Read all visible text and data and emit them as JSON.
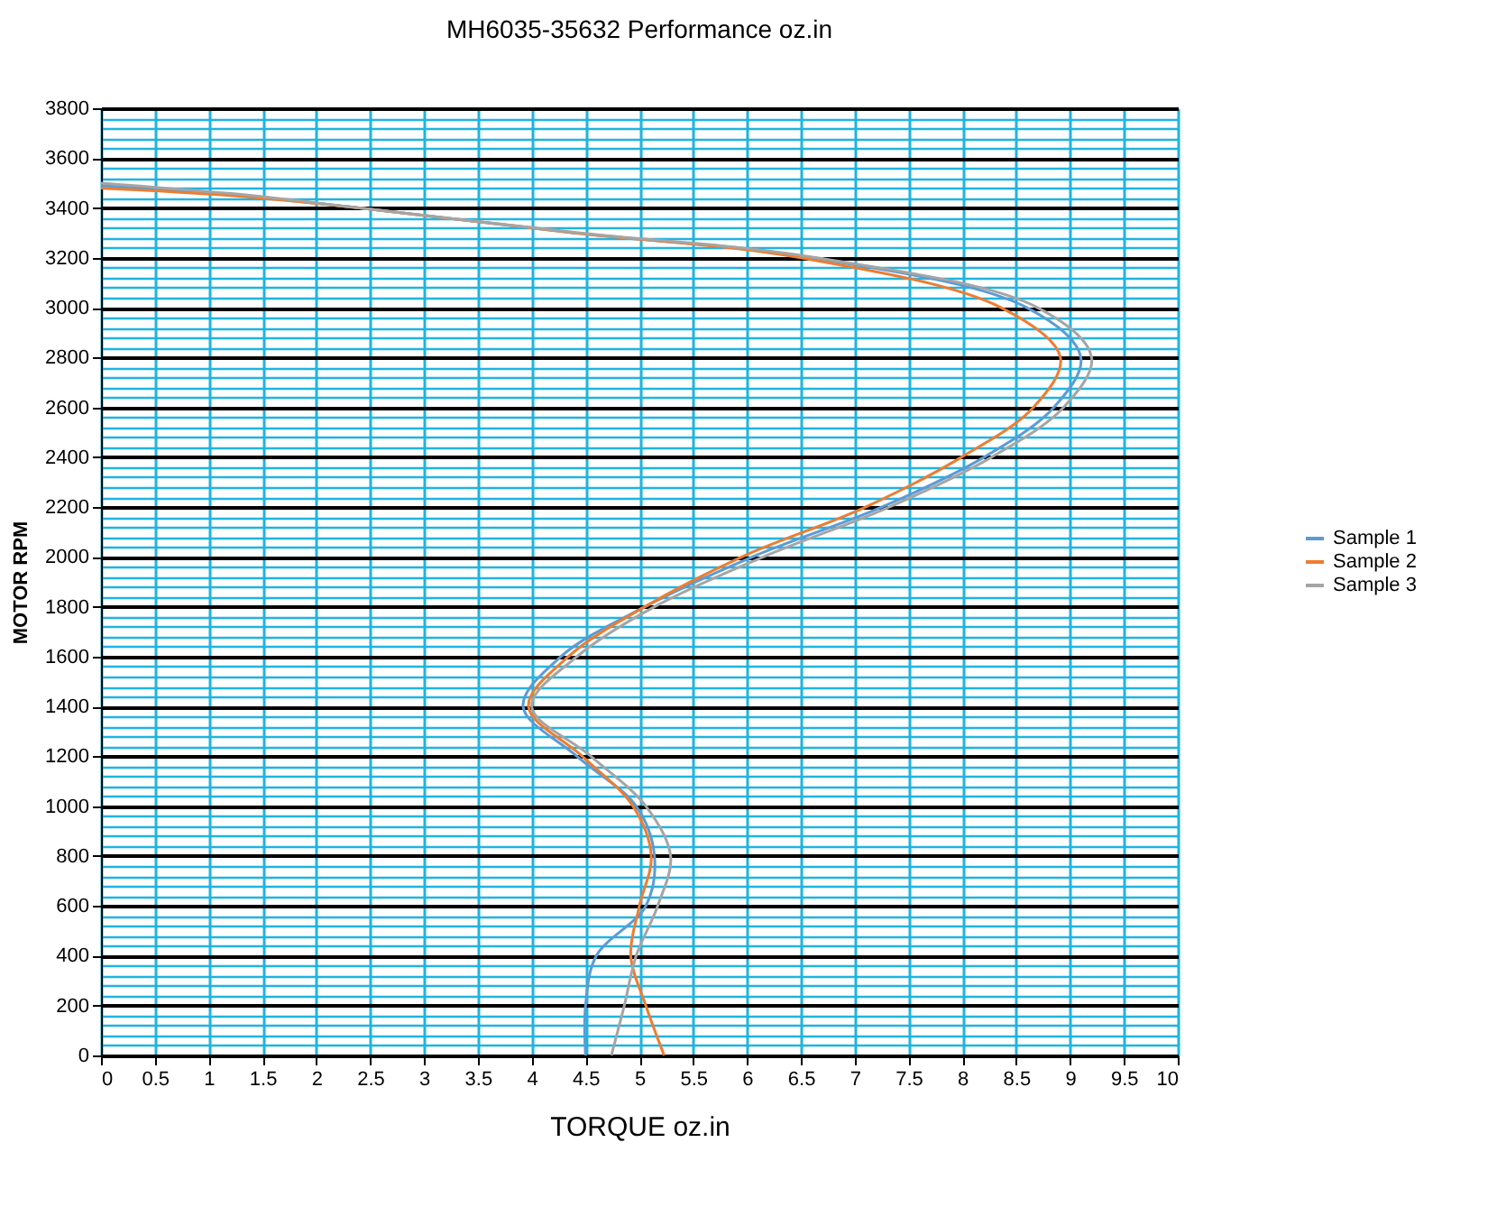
{
  "chart_data": {
    "type": "line",
    "title": "MH6035-35632  Performance oz.in",
    "xlabel": "TORQUE  oz.in",
    "ylabel": "MOTOR RPM",
    "xlim": [
      0,
      10
    ],
    "xticks": [
      0,
      0.5,
      1,
      1.5,
      2,
      2.5,
      3,
      3.5,
      4,
      4.5,
      5,
      5.5,
      6,
      6.5,
      7,
      7.5,
      8,
      8.5,
      9,
      9.5,
      10
    ],
    "ylim": [
      0,
      3800
    ],
    "yticks": [
      0,
      {
        "value": 40,
        "label": null
      },
      {
        "value": 80,
        "label": null
      },
      {
        "value": 120,
        "label": null
      },
      {
        "value": 160,
        "label": null
      },
      200,
      {
        "value": 240,
        "label": null
      },
      {
        "value": 280,
        "label": null
      },
      {
        "value": 320,
        "label": null
      },
      {
        "value": 360,
        "label": null
      },
      400,
      {
        "value": 440,
        "label": null
      },
      {
        "value": 480,
        "label": null
      },
      {
        "value": 520,
        "label": null
      },
      {
        "value": 560,
        "label": null
      },
      600,
      {
        "value": 640,
        "label": null
      },
      {
        "value": 680,
        "label": null
      },
      {
        "value": 720,
        "label": null
      },
      {
        "value": 760,
        "label": null
      },
      800,
      {
        "value": 840,
        "label": null
      },
      {
        "value": 880,
        "label": null
      },
      {
        "value": 920,
        "label": null
      },
      {
        "value": 960,
        "label": null
      },
      1000,
      {
        "value": 1040,
        "label": null
      },
      {
        "value": 1080,
        "label": null
      },
      {
        "value": 1120,
        "label": null
      },
      {
        "value": 1160,
        "label": null
      },
      1200,
      {
        "value": 1240,
        "label": null
      },
      {
        "value": 1280,
        "label": null
      },
      {
        "value": 1320,
        "label": null
      },
      {
        "value": 1360,
        "label": null
      },
      1400,
      {
        "value": 1440,
        "label": null
      },
      {
        "value": 1480,
        "label": null
      },
      {
        "value": 1520,
        "label": null
      },
      {
        "value": 1560,
        "label": null
      },
      1600,
      {
        "value": 1640,
        "label": null
      },
      {
        "value": 1680,
        "label": null
      },
      {
        "value": 1720,
        "label": null
      },
      {
        "value": 1760,
        "label": null
      },
      1800,
      {
        "value": 1840,
        "label": null
      },
      {
        "value": 1880,
        "label": null
      },
      {
        "value": 1920,
        "label": null
      },
      {
        "value": 1960,
        "label": null
      },
      2000,
      {
        "value": 2040,
        "label": null
      },
      {
        "value": 2080,
        "label": null
      },
      {
        "value": 2120,
        "label": null
      },
      {
        "value": 2160,
        "label": null
      },
      2200,
      {
        "value": 2240,
        "label": null
      },
      {
        "value": 2280,
        "label": null
      },
      {
        "value": 2320,
        "label": null
      },
      {
        "value": 2360,
        "label": null
      },
      2400,
      {
        "value": 2440,
        "label": null
      },
      {
        "value": 2480,
        "label": null
      },
      {
        "value": 2520,
        "label": null
      },
      {
        "value": 2560,
        "label": null
      },
      2600,
      {
        "value": 2640,
        "label": null
      },
      {
        "value": 2680,
        "label": null
      },
      {
        "value": 2720,
        "label": null
      },
      {
        "value": 2760,
        "label": null
      },
      2800,
      {
        "value": 2840,
        "label": null
      },
      {
        "value": 2880,
        "label": null
      },
      {
        "value": 2920,
        "label": null
      },
      {
        "value": 2960,
        "label": null
      },
      3000,
      {
        "value": 3040,
        "label": null
      },
      {
        "value": 3080,
        "label": null
      },
      {
        "value": 3120,
        "label": null
      },
      {
        "value": 3160,
        "label": null
      },
      3200,
      {
        "value": 3240,
        "label": null
      },
      {
        "value": 3280,
        "label": null
      },
      {
        "value": 3320,
        "label": null
      },
      {
        "value": 3360,
        "label": null
      },
      3400,
      {
        "value": 3440,
        "label": null
      },
      {
        "value": 3480,
        "label": null
      },
      {
        "value": 3520,
        "label": null
      },
      {
        "value": 3560,
        "label": null
      },
      3600,
      {
        "value": 3640,
        "label": null
      },
      {
        "value": 3680,
        "label": null
      },
      {
        "value": 3720,
        "label": null
      },
      {
        "value": 3760,
        "label": null
      },
      3800
    ],
    "grid": true,
    "legend": "right",
    "marker": "none",
    "line_style": "solid",
    "series": [
      {
        "name": "Sample 1",
        "color": "#5b9bd5",
        "x": [
          4.5,
          4.5,
          4.6,
          5.06,
          5.14,
          4.97,
          4.42,
          3.92,
          4.27,
          5.05,
          6.05,
          7.25,
          8.2,
          8.85,
          9.1,
          8.6,
          6.6,
          4.4,
          2.4,
          1.3,
          0
        ],
        "values": [
          0,
          200,
          400,
          600,
          800,
          1000,
          1200,
          1400,
          1600,
          1800,
          2000,
          2200,
          2400,
          2600,
          2800,
          3000,
          3200,
          3300,
          3400,
          3450,
          3490
        ]
      },
      {
        "name": "Sample 2",
        "color": "#ed7d31",
        "x": [
          5.23,
          5.06,
          4.92,
          5.0,
          5.11,
          4.94,
          4.47,
          3.97,
          4.34,
          5.05,
          5.95,
          7.1,
          7.99,
          8.66,
          8.91,
          8.36,
          6.5,
          4.4,
          2.4,
          1.2,
          0
        ],
        "values": [
          0,
          200,
          400,
          600,
          800,
          1000,
          1200,
          1400,
          1600,
          1800,
          2000,
          2200,
          2400,
          2600,
          2800,
          3000,
          3200,
          3300,
          3400,
          3450,
          3480
        ]
      },
      {
        "name": "Sample 3",
        "color": "#a5a5a5",
        "x": [
          4.74,
          4.86,
          4.97,
          5.17,
          5.29,
          5.06,
          4.55,
          4.0,
          4.42,
          5.14,
          6.15,
          7.32,
          8.27,
          8.94,
          9.2,
          8.7,
          6.65,
          4.45,
          2.4,
          1.4,
          0
        ],
        "values": [
          0,
          200,
          400,
          600,
          800,
          1000,
          1200,
          1400,
          1600,
          1800,
          2000,
          2200,
          2400,
          2600,
          2800,
          3000,
          3200,
          3300,
          3400,
          3450,
          3500
        ]
      }
    ]
  }
}
